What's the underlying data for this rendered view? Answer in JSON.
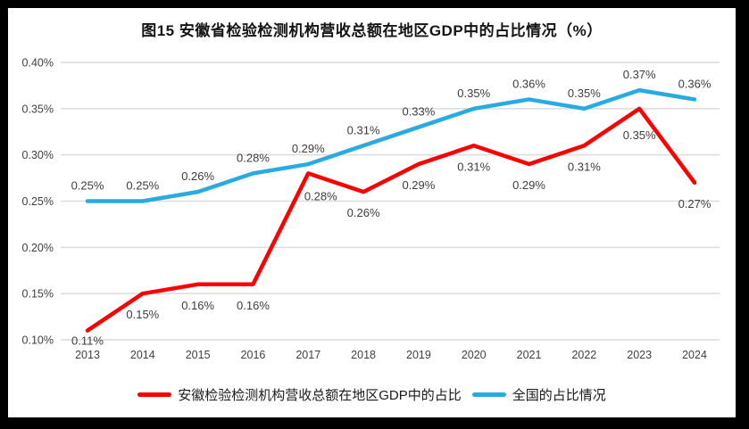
{
  "chart_data": {
    "type": "line",
    "title": "图15 安徽省检验检测机构营收总额在地区GDP中的占比情况（%）",
    "categories": [
      "2013",
      "2014",
      "2015",
      "2016",
      "2017",
      "2018",
      "2019",
      "2020",
      "2021",
      "2022",
      "2023",
      "2024"
    ],
    "series": [
      {
        "name": "安徽检验检测机构营收总额在地区GDP中的占比",
        "color": "#FF0000",
        "values": [
          0.11,
          0.15,
          0.16,
          0.16,
          0.28,
          0.26,
          0.29,
          0.31,
          0.29,
          0.31,
          0.35,
          0.27
        ],
        "data_labels": [
          "0.11%",
          "0.15%",
          "0.16%",
          "0.16%",
          "0.28%",
          "0.26%",
          "0.29%",
          "0.31%",
          "0.29%",
          "0.31%",
          "0.35%",
          "0.27%"
        ],
        "data_label_position": "below"
      },
      {
        "name": "全国的占比情况",
        "color": "#29ABE2",
        "values": [
          0.25,
          0.25,
          0.26,
          0.28,
          0.29,
          0.31,
          0.33,
          0.35,
          0.36,
          0.35,
          0.37,
          0.36
        ],
        "data_labels": [
          "0.25%",
          "0.25%",
          "0.26%",
          "0.28%",
          "0.29%",
          "0.31%",
          "0.33%",
          "0.35%",
          "0.36%",
          "0.35%",
          "0.37%",
          "0.36%"
        ],
        "data_label_position": "above"
      }
    ],
    "y_axis": {
      "min": 0.1,
      "max": 0.4,
      "step": 0.05,
      "tick_labels": [
        "0.10%",
        "0.15%",
        "0.20%",
        "0.25%",
        "0.30%",
        "0.35%",
        "0.40%"
      ],
      "unit": "%"
    },
    "data_label_format": "0.00%",
    "grid": true,
    "legend_position": "bottom",
    "colors": {
      "gridline": "#DCDCDC",
      "axis_text": "#404040",
      "data_label_text": "#3d3d3d",
      "frame_border": "#000000",
      "background": "#FFFFFF"
    }
  }
}
